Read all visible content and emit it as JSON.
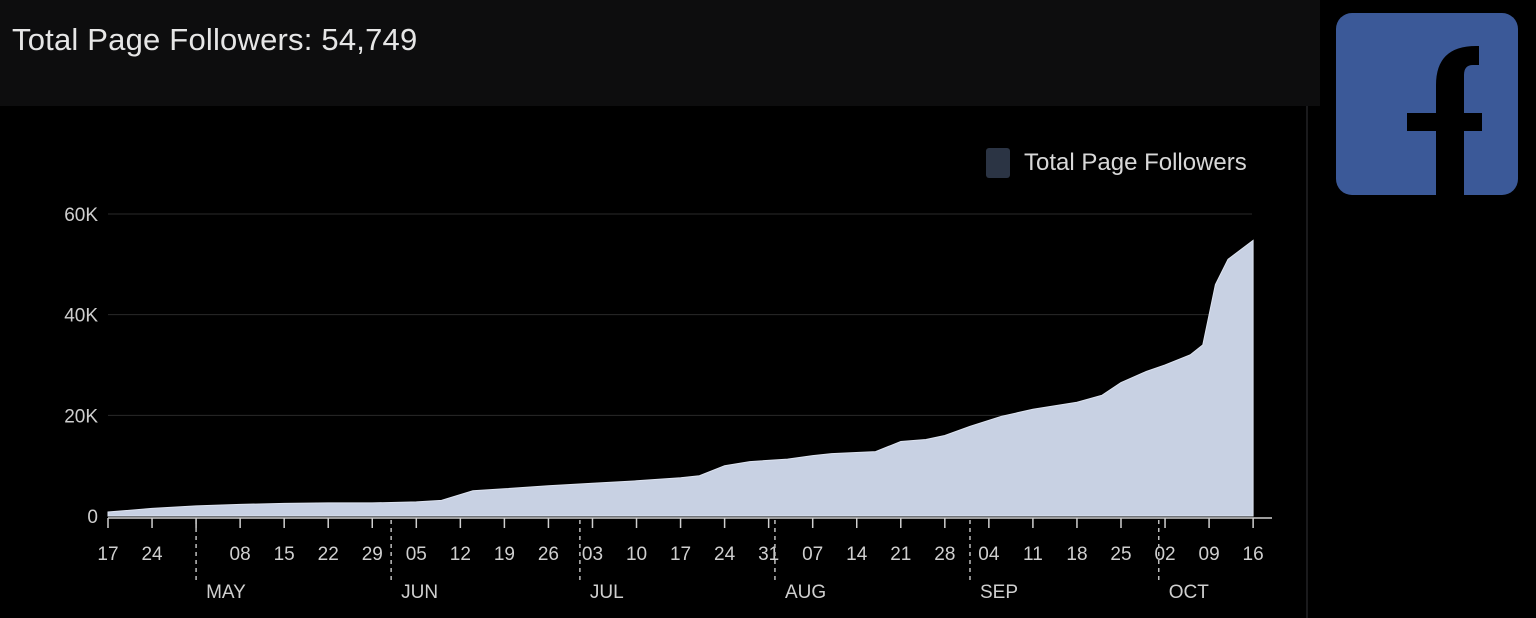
{
  "header": {
    "title": "Total Page Followers: 54,749"
  },
  "brand": {
    "icon": "facebook-logo-icon",
    "background_color": "#3b5998"
  },
  "colors": {
    "area_fill": "#c8d1e3",
    "legend_swatch": "#2b3444",
    "gridline": "#2a2a2a",
    "text": "#cfcfcf"
  },
  "chart_data": {
    "type": "area",
    "title": "",
    "xlabel": "",
    "ylabel": "",
    "legend": {
      "position": "top-right",
      "entries": [
        "Total Page Followers"
      ]
    },
    "grid": true,
    "ylim": [
      0,
      60000
    ],
    "y_ticks": [
      0,
      20000,
      40000,
      60000
    ],
    "y_tick_labels": [
      "0",
      "20K",
      "40K",
      "60K"
    ],
    "x_range": [
      "2023-04-17",
      "2023-10-19"
    ],
    "x_ticks": [
      "2023-04-17",
      "2023-04-24",
      "2023-05-08",
      "2023-05-15",
      "2023-05-22",
      "2023-05-29",
      "2023-06-05",
      "2023-06-12",
      "2023-06-19",
      "2023-06-26",
      "2023-07-03",
      "2023-07-10",
      "2023-07-17",
      "2023-07-24",
      "2023-07-31",
      "2023-08-07",
      "2023-08-14",
      "2023-08-21",
      "2023-08-28",
      "2023-09-04",
      "2023-09-11",
      "2023-09-18",
      "2023-09-25",
      "2023-10-02",
      "2023-10-09",
      "2023-10-16"
    ],
    "x_tick_labels": [
      "17",
      "24",
      "08",
      "15",
      "22",
      "29",
      "05",
      "12",
      "19",
      "26",
      "03",
      "10",
      "17",
      "24",
      "31",
      "07",
      "14",
      "21",
      "28",
      "04",
      "11",
      "18",
      "25",
      "02",
      "09",
      "16"
    ],
    "month_labels": [
      {
        "date": "2023-05-01",
        "label": "MAY"
      },
      {
        "date": "2023-06-01",
        "label": "JUN"
      },
      {
        "date": "2023-07-01",
        "label": "JUL"
      },
      {
        "date": "2023-08-01",
        "label": "AUG"
      },
      {
        "date": "2023-09-01",
        "label": "SEP"
      },
      {
        "date": "2023-10-01",
        "label": "OCT"
      }
    ],
    "series": [
      {
        "name": "Total Page Followers",
        "x": [
          "2023-04-17",
          "2023-04-24",
          "2023-05-01",
          "2023-05-08",
          "2023-05-15",
          "2023-05-22",
          "2023-05-29",
          "2023-06-05",
          "2023-06-09",
          "2023-06-14",
          "2023-06-19",
          "2023-06-26",
          "2023-07-03",
          "2023-07-10",
          "2023-07-17",
          "2023-07-20",
          "2023-07-24",
          "2023-07-28",
          "2023-08-03",
          "2023-08-07",
          "2023-08-10",
          "2023-08-17",
          "2023-08-21",
          "2023-08-25",
          "2023-08-28",
          "2023-09-01",
          "2023-09-06",
          "2023-09-11",
          "2023-09-18",
          "2023-09-22",
          "2023-09-25",
          "2023-09-29",
          "2023-10-02",
          "2023-10-06",
          "2023-10-08",
          "2023-10-10",
          "2023-10-12",
          "2023-10-16"
        ],
        "values": [
          800,
          1500,
          2000,
          2300,
          2500,
          2600,
          2600,
          2800,
          3100,
          5000,
          5400,
          6000,
          6500,
          7000,
          7600,
          8000,
          10000,
          10800,
          11300,
          12000,
          12400,
          12800,
          14800,
          15200,
          16000,
          17800,
          19800,
          21200,
          22600,
          24000,
          26500,
          28700,
          30000,
          32000,
          34000,
          46000,
          51000,
          54749
        ]
      }
    ]
  }
}
